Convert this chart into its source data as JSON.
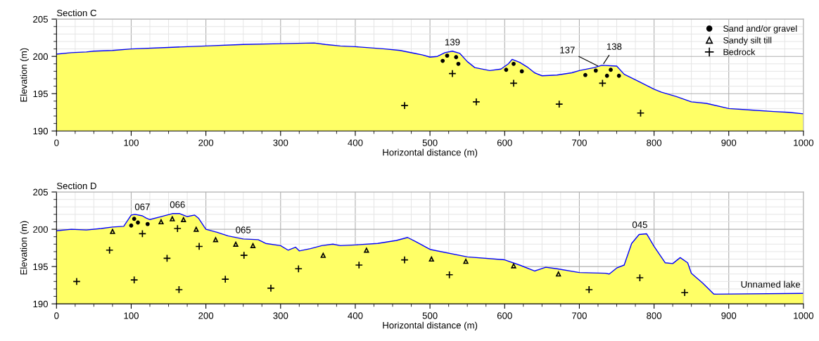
{
  "chart_data": [
    {
      "type": "area",
      "title": "Section C",
      "xlabel": "Horizontal distance (m)",
      "ylabel": "Elevation (m)",
      "xlim": [
        0,
        1000
      ],
      "ylim": [
        190,
        205
      ],
      "xticks": [
        0,
        100,
        200,
        300,
        400,
        500,
        600,
        700,
        800,
        900,
        1000
      ],
      "yticks": [
        190,
        195,
        200,
        205
      ],
      "grid": true,
      "legend": "top right",
      "series": [
        {
          "color": "#ffff66",
          "x": [
            0,
            20,
            40,
            50,
            75,
            100,
            150,
            200,
            250,
            300,
            345,
            360,
            380,
            400,
            440,
            460,
            480,
            490,
            500,
            510,
            520,
            530,
            540,
            550,
            560,
            580,
            595,
            605,
            610,
            620,
            630,
            640,
            650,
            670,
            690,
            700,
            720,
            730,
            750,
            760,
            780,
            800,
            810,
            830,
            850,
            870,
            900,
            930,
            960,
            980,
            1000
          ],
          "values": [
            200.3,
            200.5,
            200.6,
            200.7,
            200.8,
            201.0,
            201.2,
            201.4,
            201.6,
            201.7,
            201.8,
            201.6,
            201.4,
            201.3,
            201.0,
            200.8,
            200.4,
            200.2,
            199.9,
            200.0,
            200.5,
            200.7,
            200.4,
            199.3,
            198.5,
            198.1,
            198.3,
            199.0,
            199.6,
            199.2,
            198.6,
            197.8,
            197.4,
            197.5,
            197.8,
            198.1,
            198.5,
            198.8,
            198.7,
            197.6,
            196.6,
            195.6,
            195.2,
            194.6,
            193.9,
            193.7,
            193.0,
            192.8,
            192.6,
            192.5,
            192.3
          ]
        },
        {
          "type": "line",
          "color": "#0000ff",
          "x": [
            0,
            20,
            40,
            50,
            75,
            100,
            150,
            200,
            250,
            300,
            345,
            360,
            380,
            400,
            440,
            460,
            480,
            490,
            500,
            510,
            520,
            530,
            540,
            550,
            560,
            580,
            595,
            605,
            610,
            620,
            630,
            640,
            650,
            670,
            690,
            700,
            720,
            730,
            750,
            760,
            780,
            800,
            810,
            830,
            850,
            870,
            900,
            930,
            960,
            980,
            1000
          ],
          "values": [
            200.3,
            200.5,
            200.6,
            200.7,
            200.8,
            201.0,
            201.2,
            201.4,
            201.6,
            201.7,
            201.8,
            201.6,
            201.4,
            201.3,
            201.0,
            200.8,
            200.4,
            200.2,
            199.9,
            200.0,
            200.5,
            200.7,
            200.4,
            199.3,
            198.5,
            198.1,
            198.3,
            199.0,
            199.6,
            199.2,
            198.6,
            197.8,
            197.4,
            197.5,
            197.8,
            198.1,
            198.5,
            198.8,
            198.7,
            197.6,
            196.6,
            195.6,
            195.2,
            194.6,
            193.9,
            193.7,
            193.0,
            192.8,
            192.6,
            192.5,
            192.3
          ]
        },
        {
          "type": "scatter",
          "name": "Sand and/or gravel",
          "color": "#000000",
          "marker": "circle",
          "x": [
            517,
            523,
            535,
            538,
            602,
            612,
            623,
            708,
            722,
            737,
            742,
            753
          ],
          "values": [
            199.4,
            200.1,
            199.9,
            199.0,
            198.2,
            199.0,
            198.0,
            197.5,
            198.1,
            197.4,
            198.2,
            197.4
          ]
        },
        {
          "type": "scatter",
          "name": "Sandy silt till",
          "color": "#000000",
          "marker": "triangle"
        },
        {
          "type": "scatter",
          "name": "Bedrock",
          "color": "#000000",
          "marker": "cross",
          "x": [
            466,
            530,
            562,
            612,
            673,
            731,
            782
          ],
          "values": [
            193.4,
            197.7,
            193.9,
            196.4,
            193.6,
            196.4,
            192.4
          ]
        }
      ],
      "annotations": [
        {
          "text": "139",
          "x": 530,
          "y": 200.7
        },
        {
          "text": "137",
          "x": 727,
          "y": 198.6
        },
        {
          "text": "138",
          "x": 731,
          "y": 198.8
        }
      ]
    },
    {
      "type": "area",
      "title": "Section D",
      "xlabel": "Horizontal distance (m)",
      "ylabel": "Elevation (m)",
      "xlim": [
        0,
        1000
      ],
      "ylim": [
        190,
        205
      ],
      "xticks": [
        0,
        100,
        200,
        300,
        400,
        500,
        600,
        700,
        800,
        900,
        1000
      ],
      "yticks": [
        190,
        195,
        200,
        205
      ],
      "grid": true,
      "series": [
        {
          "color": "#ffff66",
          "x": [
            0,
            20,
            40,
            60,
            75,
            90,
            100,
            105,
            115,
            120,
            125,
            140,
            155,
            165,
            175,
            185,
            190,
            200,
            215,
            230,
            250,
            270,
            280,
            300,
            310,
            320,
            325,
            340,
            355,
            370,
            380,
            400,
            430,
            455,
            470,
            480,
            500,
            550,
            600,
            620,
            640,
            655,
            670,
            700,
            735,
            740,
            750,
            760,
            770,
            780,
            790,
            800,
            815,
            825,
            835,
            845,
            850,
            865,
            880,
            1000
          ],
          "values": [
            199.8,
            200.0,
            199.9,
            200.1,
            200.3,
            200.4,
            201.9,
            202.0,
            201.8,
            201.5,
            201.3,
            201.7,
            202.1,
            202.1,
            201.7,
            201.9,
            201.5,
            200.0,
            199.6,
            199.1,
            198.7,
            198.6,
            198.1,
            197.8,
            197.2,
            197.6,
            197.1,
            197.4,
            197.8,
            198.0,
            197.8,
            197.9,
            198.1,
            198.5,
            198.9,
            198.4,
            197.3,
            196.3,
            195.9,
            195.2,
            194.4,
            194.9,
            194.7,
            194.2,
            194.1,
            194.0,
            194.8,
            195.2,
            198.1,
            199.3,
            199.4,
            197.7,
            195.5,
            195.4,
            196.2,
            195.5,
            194.1,
            192.8,
            191.3,
            191.4
          ]
        },
        {
          "type": "line",
          "color": "#0000ff",
          "x": [
            0,
            20,
            40,
            60,
            75,
            90,
            100,
            105,
            115,
            120,
            125,
            140,
            155,
            165,
            175,
            185,
            190,
            200,
            215,
            230,
            250,
            270,
            280,
            300,
            310,
            320,
            325,
            340,
            355,
            370,
            380,
            400,
            430,
            455,
            470,
            480,
            500,
            550,
            600,
            620,
            640,
            655,
            670,
            700,
            735,
            740,
            750,
            760,
            770,
            780,
            790,
            800,
            815,
            825,
            835,
            845,
            850,
            865,
            880,
            1000
          ],
          "values": [
            199.8,
            200.0,
            199.9,
            200.1,
            200.3,
            200.4,
            201.9,
            202.0,
            201.8,
            201.5,
            201.3,
            201.7,
            202.1,
            202.1,
            201.7,
            201.9,
            201.5,
            200.0,
            199.6,
            199.1,
            198.7,
            198.6,
            198.1,
            197.8,
            197.2,
            197.6,
            197.1,
            197.4,
            197.8,
            198.0,
            197.8,
            197.9,
            198.1,
            198.5,
            198.9,
            198.4,
            197.3,
            196.3,
            195.9,
            195.2,
            194.4,
            194.9,
            194.7,
            194.2,
            194.1,
            194.0,
            194.8,
            195.2,
            198.1,
            199.3,
            199.4,
            197.7,
            195.5,
            195.4,
            196.2,
            195.5,
            194.1,
            192.8,
            191.3,
            191.4
          ]
        },
        {
          "type": "scatter",
          "color": "#000000",
          "marker": "circle",
          "x": [
            100,
            104,
            109,
            122
          ],
          "values": [
            200.5,
            201.4,
            200.9,
            200.7
          ]
        },
        {
          "type": "scatter",
          "color": "#000000",
          "marker": "triangle",
          "x": [
            75,
            140,
            155,
            170,
            187,
            213,
            240,
            263,
            357,
            415,
            502,
            548,
            612,
            672
          ],
          "values": [
            199.7,
            201.0,
            201.4,
            201.3,
            200.0,
            198.6,
            198.0,
            197.8,
            196.5,
            197.2,
            196.0,
            195.7,
            195.1,
            194.0
          ]
        },
        {
          "type": "scatter",
          "color": "#000000",
          "marker": "cross",
          "x": [
            27,
            71,
            104,
            115,
            148,
            162,
            164,
            191,
            226,
            251,
            287,
            324,
            405,
            466,
            526,
            713,
            781,
            841
          ],
          "values": [
            193.0,
            197.2,
            193.2,
            199.4,
            196.1,
            200.1,
            191.9,
            197.7,
            193.3,
            196.5,
            192.1,
            194.7,
            195.2,
            195.9,
            193.9,
            191.9,
            193.5,
            191.5
          ]
        }
      ],
      "annotations": [
        {
          "text": "067",
          "x": 115,
          "y": 201.8
        },
        {
          "text": "066",
          "x": 162,
          "y": 202.1
        },
        {
          "text": "065",
          "x": 250,
          "y": 198.7
        },
        {
          "text": "045",
          "x": 781,
          "y": 199.4
        },
        {
          "text": "Unnamed lake",
          "x": 1000,
          "y": 191.4
        }
      ]
    }
  ]
}
